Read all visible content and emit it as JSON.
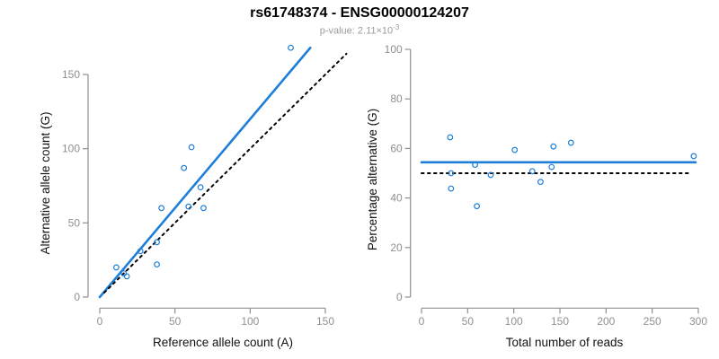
{
  "header": {
    "title": "rs61748374 - ENSG00000124207",
    "subtitle_prefix": "p-value: 2.11×10",
    "subtitle_exponent": "-3"
  },
  "colors": {
    "point_blue": "#1f7fd8",
    "line_blue": "#1f7fd8",
    "line_black": "#000000",
    "axis_gray": "#8f8f8f",
    "axis_title_color": "#111111",
    "subtitle_gray": "#9b9b9b"
  },
  "chart_data": [
    {
      "type": "scatter",
      "name": "allele-counts-scatter",
      "xlabel": "Reference allele count (A)",
      "ylabel": "Alternative allele count (G)",
      "xlim": [
        0,
        157
      ],
      "ylim": [
        0,
        172
      ],
      "x_ticks": [
        0,
        50,
        100,
        150
      ],
      "y_ticks": [
        0,
        50,
        100,
        150
      ],
      "grid": false,
      "legend": "none",
      "points": [
        [
          11,
          20
        ],
        [
          16,
          16
        ],
        [
          18,
          14
        ],
        [
          27,
          31
        ],
        [
          38,
          22
        ],
        [
          38,
          37
        ],
        [
          41,
          60
        ],
        [
          56,
          87
        ],
        [
          59,
          61
        ],
        [
          61,
          101
        ],
        [
          67,
          74
        ],
        [
          69,
          60
        ],
        [
          127,
          168
        ]
      ],
      "lines": [
        {
          "name": "fit-line",
          "style": "solid",
          "color": "#1f7fd8",
          "from": [
            0,
            0
          ],
          "to": [
            140,
            168
          ]
        },
        {
          "name": "identity-line",
          "style": "dotted",
          "color": "#000000",
          "from": [
            3,
            3
          ],
          "to": [
            164,
            164
          ]
        }
      ]
    },
    {
      "type": "scatter",
      "name": "percentage-alternative-scatter",
      "xlabel": "Total number of reads",
      "ylabel": "Percentage alternative (G)",
      "xlim": [
        0,
        310
      ],
      "ylim": [
        0,
        100
      ],
      "x_ticks": [
        0,
        50,
        100,
        150,
        200,
        250,
        300
      ],
      "y_ticks": [
        0,
        20,
        40,
        60,
        80,
        100
      ],
      "grid": false,
      "legend": "none",
      "points": [
        [
          31,
          64.5
        ],
        [
          32,
          50.0
        ],
        [
          32,
          43.8
        ],
        [
          58,
          53.4
        ],
        [
          60,
          36.7
        ],
        [
          75,
          49.3
        ],
        [
          101,
          59.4
        ],
        [
          120,
          50.8
        ],
        [
          129,
          46.5
        ],
        [
          141,
          52.5
        ],
        [
          143,
          60.8
        ],
        [
          162,
          62.3
        ],
        [
          295,
          56.9
        ]
      ],
      "lines": [
        {
          "name": "mean-percentage-line",
          "style": "solid",
          "color": "#1f7fd8",
          "from": [
            0,
            54.4
          ],
          "to": [
            297,
            54.4
          ]
        },
        {
          "name": "fifty-percent-line",
          "style": "dotted",
          "color": "#000000",
          "from": [
            0,
            50
          ],
          "to": [
            293,
            50
          ]
        }
      ]
    }
  ]
}
